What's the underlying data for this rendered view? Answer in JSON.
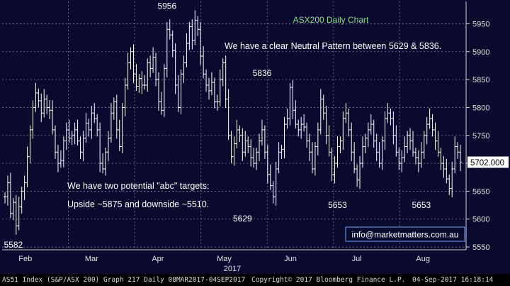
{
  "chart_data": {
    "type": "ohlc",
    "title": "ASX200 Daily Chart",
    "ylim": [
      5545,
      5990
    ],
    "yticks": [
      5550,
      5600,
      5650,
      5700,
      5750,
      5800,
      5850,
      5900,
      5950
    ],
    "months": [
      "Feb",
      "Mar",
      "Apr",
      "May",
      "Jun",
      "Jul",
      "Aug"
    ],
    "year_label": "2017",
    "last_price": "5702.000",
    "last_value": 5702,
    "annotations": [
      {
        "text": "5956",
        "x": 58,
        "y": 5956,
        "pos": "above"
      },
      {
        "text": "5836",
        "x": 92,
        "y": 5836,
        "pos": "above"
      },
      {
        "text": "5582",
        "x": 3,
        "y": 5582,
        "pos": "below"
      },
      {
        "text": "5629",
        "x": 85,
        "y": 5629,
        "pos": "below"
      },
      {
        "text": "5653",
        "x": 119,
        "y": 5653,
        "pos": "below"
      },
      {
        "text": "5653",
        "x": 149,
        "y": 5653,
        "pos": "below"
      }
    ],
    "notes": [
      "We have a clear Neutral Pattern between 5629 & 5836.",
      "We have two potential \"abc\" targets:",
      "Upside ~5875 and downside ~5510."
    ],
    "watermark": "info@marketmatters.com.au",
    "closes": [
      5640,
      5665,
      5610,
      5630,
      5588,
      5622,
      5650,
      5665,
      5712,
      5760,
      5800,
      5826,
      5812,
      5790,
      5815,
      5800,
      5795,
      5760,
      5720,
      5700,
      5705,
      5740,
      5760,
      5745,
      5750,
      5760,
      5740,
      5720,
      5745,
      5772,
      5760,
      5790,
      5780,
      5760,
      5700,
      5690,
      5720,
      5745,
      5790,
      5810,
      5760,
      5730,
      5800,
      5840,
      5880,
      5900,
      5860,
      5838,
      5852,
      5840,
      5840,
      5880,
      5870,
      5890,
      5850,
      5810,
      5795,
      5870,
      5940,
      5930,
      5902,
      5840,
      5800,
      5860,
      5880,
      5915,
      5945,
      5920,
      5956,
      5940,
      5892,
      5860,
      5840,
      5830,
      5845,
      5810,
      5810,
      5850,
      5880,
      5815,
      5750,
      5712,
      5735,
      5760,
      5750,
      5720,
      5740,
      5730,
      5710,
      5700,
      5720,
      5740,
      5760,
      5720,
      5680,
      5660,
      5640,
      5690,
      5720,
      5725,
      5770,
      5780,
      5836,
      5795,
      5770,
      5760,
      5770,
      5765,
      5740,
      5720,
      5690,
      5730,
      5760,
      5815,
      5790,
      5750,
      5720,
      5680,
      5700,
      5730,
      5740,
      5780,
      5790,
      5760,
      5720,
      5690,
      5670,
      5700,
      5730,
      5745,
      5760,
      5770,
      5740,
      5720,
      5700,
      5740,
      5780,
      5790,
      5780,
      5750,
      5720,
      5700,
      5710,
      5730,
      5750,
      5740,
      5720,
      5710,
      5700,
      5720,
      5750,
      5770,
      5780,
      5760,
      5740,
      5720,
      5700,
      5690,
      5672,
      5655,
      5690,
      5730,
      5720,
      5702
    ]
  },
  "footer": {
    "left": "AS51 Index (S&P/ASX 200) Graph 217  Daily 08MAR2017-04SEP2017",
    "center": "Copyright© 2017 Bloomberg Finance L.P.",
    "right": "04-Sep-2017 16:18:14"
  },
  "colors": {
    "background": "#0a0a2e",
    "price_line": "#ffffff",
    "grid": "#7a7a9e",
    "title": "#8fd98f",
    "watermark_border": "#6fa8ff"
  }
}
